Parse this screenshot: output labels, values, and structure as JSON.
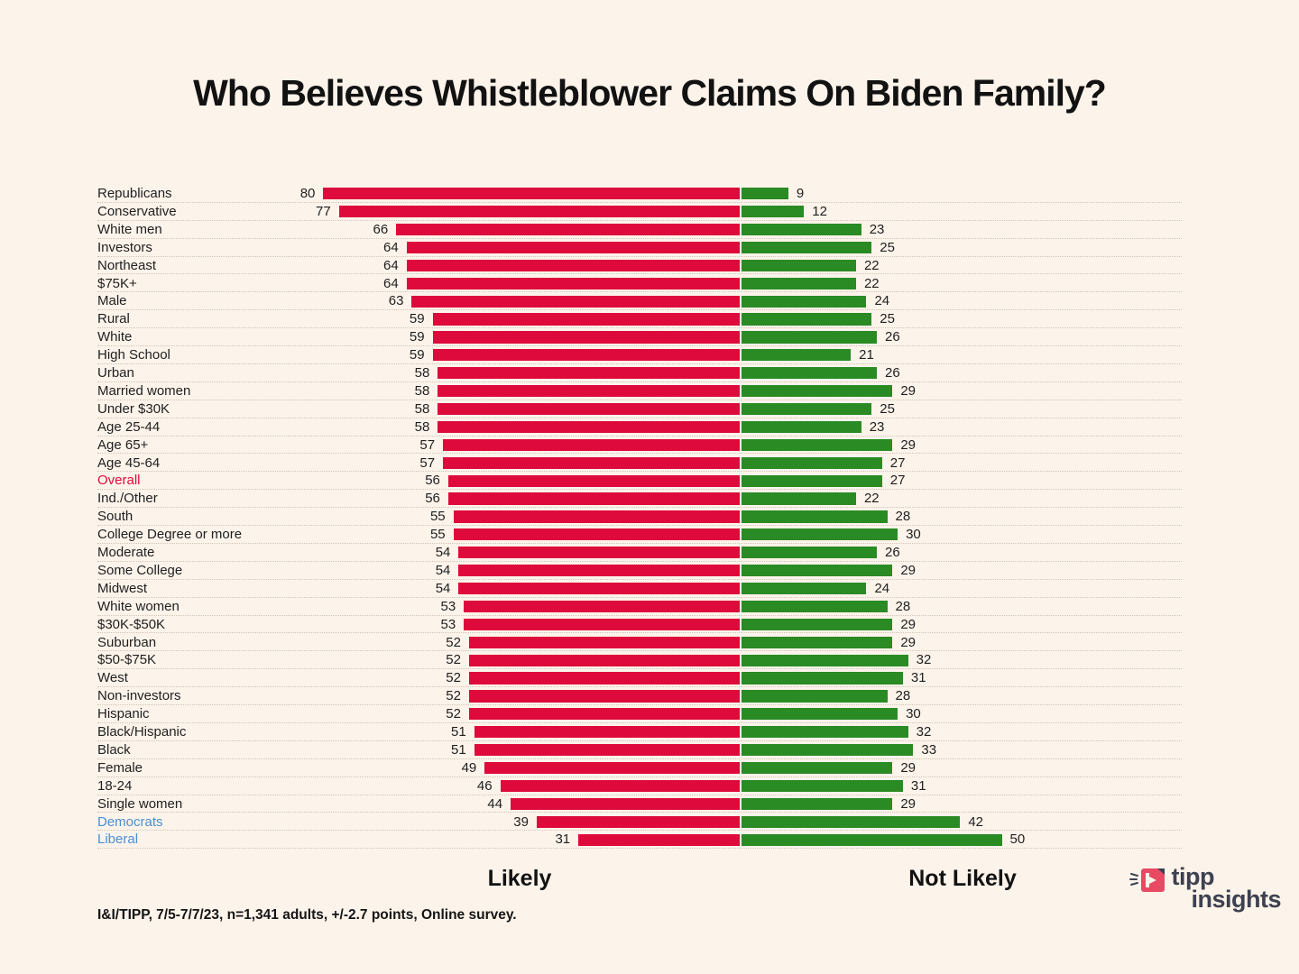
{
  "title": "Who Believes Whistleblower Claims On Biden Family?",
  "footer": {
    "source": "I&I/TIPP, 7/5-7/7/23, n=1,341 adults, +/-2.7 points, Online survey."
  },
  "logo": {
    "icon": "tipp-arrow-icon",
    "line1": "tipp",
    "line2": "insights"
  },
  "chart_data": {
    "type": "bar",
    "orientation": "horizontal-diverging",
    "title": "Who Believes Whistleblower Claims On Biden Family?",
    "legend": [
      "Likely",
      "Not Likely"
    ],
    "axis_labels": {
      "left_side": "Likely",
      "right_side": "Not Likely"
    },
    "value_range_per_side": [
      0,
      80
    ],
    "grid": "row-separators-only",
    "colors": {
      "background": "#FCF3EA",
      "likely_bar": "#DE0A3C",
      "not_likely_bar": "#2A8B24",
      "label": "#1F1F1F",
      "overall_label": "#E00A3C",
      "democrat_label": "#4A8FD6"
    },
    "rows": [
      {
        "label": "Republicans",
        "likely": 80,
        "not_likely": 9
      },
      {
        "label": "Conservative",
        "likely": 77,
        "not_likely": 12
      },
      {
        "label": "White men",
        "likely": 66,
        "not_likely": 23
      },
      {
        "label": "Investors",
        "likely": 64,
        "not_likely": 25
      },
      {
        "label": "Northeast",
        "likely": 64,
        "not_likely": 22
      },
      {
        "label": "$75K+",
        "likely": 64,
        "not_likely": 22
      },
      {
        "label": "Male",
        "likely": 63,
        "not_likely": 24
      },
      {
        "label": "Rural",
        "likely": 59,
        "not_likely": 25
      },
      {
        "label": "White",
        "likely": 59,
        "not_likely": 26
      },
      {
        "label": "High School",
        "likely": 59,
        "not_likely": 21
      },
      {
        "label": "Urban",
        "likely": 58,
        "not_likely": 26
      },
      {
        "label": "Married women",
        "likely": 58,
        "not_likely": 29
      },
      {
        "label": "Under $30K",
        "likely": 58,
        "not_likely": 25
      },
      {
        "label": "Age 25-44",
        "likely": 58,
        "not_likely": 23
      },
      {
        "label": "Age 65+",
        "likely": 57,
        "not_likely": 29
      },
      {
        "label": "Age 45-64",
        "likely": 57,
        "not_likely": 27
      },
      {
        "label": "Overall",
        "likely": 56,
        "not_likely": 27,
        "color": "#E00A3C"
      },
      {
        "label": "Ind./Other",
        "likely": 56,
        "not_likely": 22
      },
      {
        "label": "South",
        "likely": 55,
        "not_likely": 28
      },
      {
        "label": "College Degree or more",
        "likely": 55,
        "not_likely": 30
      },
      {
        "label": "Moderate",
        "likely": 54,
        "not_likely": 26
      },
      {
        "label": "Some College",
        "likely": 54,
        "not_likely": 29
      },
      {
        "label": "Midwest",
        "likely": 54,
        "not_likely": 24
      },
      {
        "label": "White women",
        "likely": 53,
        "not_likely": 28
      },
      {
        "label": "$30K-$50K",
        "likely": 53,
        "not_likely": 29
      },
      {
        "label": "Suburban",
        "likely": 52,
        "not_likely": 29
      },
      {
        "label": "$50-$75K",
        "likely": 52,
        "not_likely": 32
      },
      {
        "label": "West",
        "likely": 52,
        "not_likely": 31
      },
      {
        "label": "Non-investors",
        "likely": 52,
        "not_likely": 28
      },
      {
        "label": "Hispanic",
        "likely": 52,
        "not_likely": 30
      },
      {
        "label": "Black/Hispanic",
        "likely": 51,
        "not_likely": 32
      },
      {
        "label": "Black",
        "likely": 51,
        "not_likely": 33
      },
      {
        "label": "Female",
        "likely": 49,
        "not_likely": 29
      },
      {
        "label": "18-24",
        "likely": 46,
        "not_likely": 31
      },
      {
        "label": "Single women",
        "likely": 44,
        "not_likely": 29
      },
      {
        "label": "Democrats",
        "likely": 39,
        "not_likely": 42,
        "color": "#4A8FD6"
      },
      {
        "label": "Liberal",
        "likely": 31,
        "not_likely": 50,
        "color": "#4A8FD6"
      }
    ]
  }
}
